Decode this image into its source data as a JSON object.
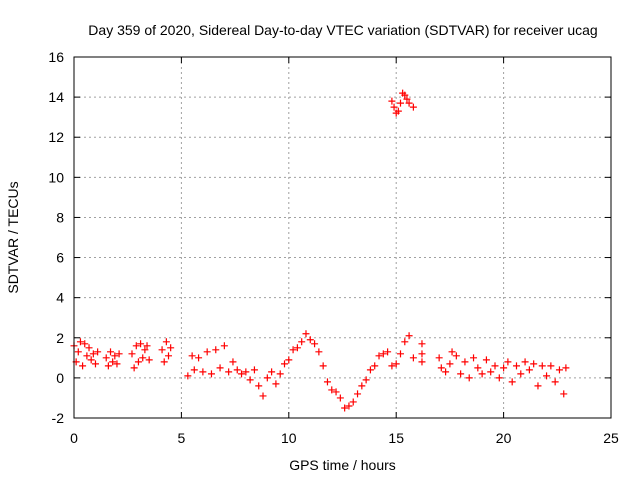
{
  "chart_data": {
    "type": "scatter",
    "title": "Day 359 of 2020, Sidereal Day-to-day VTEC variation (SDTVAR) for receiver ucag",
    "xlabel": "GPS time / hours",
    "ylabel": "SDTVAR / TECUs",
    "xlim": [
      0,
      25
    ],
    "ylim": [
      -2,
      16
    ],
    "xticks": [
      0,
      5,
      10,
      15,
      20,
      25
    ],
    "yticks": [
      -2,
      0,
      2,
      4,
      6,
      8,
      10,
      12,
      14,
      16
    ],
    "grid": true,
    "marker": "plus",
    "color": "#ff0000",
    "series": [
      {
        "name": "SDTVAR",
        "points": [
          [
            0.0,
            1.6
          ],
          [
            0.1,
            0.8
          ],
          [
            0.2,
            1.3
          ],
          [
            0.3,
            1.8
          ],
          [
            0.4,
            0.6
          ],
          [
            0.5,
            1.7
          ],
          [
            0.6,
            1.1
          ],
          [
            0.7,
            1.5
          ],
          [
            0.8,
            0.9
          ],
          [
            0.9,
            1.2
          ],
          [
            1.0,
            0.7
          ],
          [
            1.1,
            1.3
          ],
          [
            1.5,
            1.0
          ],
          [
            1.6,
            0.6
          ],
          [
            1.7,
            1.3
          ],
          [
            1.8,
            0.8
          ],
          [
            1.9,
            1.1
          ],
          [
            2.0,
            0.7
          ],
          [
            2.1,
            1.2
          ],
          [
            2.7,
            1.2
          ],
          [
            2.8,
            0.5
          ],
          [
            2.9,
            1.6
          ],
          [
            3.0,
            0.8
          ],
          [
            3.1,
            1.7
          ],
          [
            3.2,
            1.0
          ],
          [
            3.3,
            1.4
          ],
          [
            3.4,
            1.6
          ],
          [
            3.5,
            0.9
          ],
          [
            4.1,
            1.4
          ],
          [
            4.2,
            0.8
          ],
          [
            4.3,
            1.8
          ],
          [
            4.4,
            1.1
          ],
          [
            4.5,
            1.5
          ],
          [
            5.3,
            0.1
          ],
          [
            5.5,
            1.1
          ],
          [
            5.6,
            0.4
          ],
          [
            5.8,
            1.0
          ],
          [
            6.0,
            0.3
          ],
          [
            6.2,
            1.3
          ],
          [
            6.4,
            0.2
          ],
          [
            6.6,
            1.4
          ],
          [
            6.8,
            0.5
          ],
          [
            7.0,
            1.6
          ],
          [
            7.2,
            0.3
          ],
          [
            7.4,
            0.8
          ],
          [
            7.6,
            0.4
          ],
          [
            7.8,
            0.2
          ],
          [
            8.0,
            0.3
          ],
          [
            8.2,
            -0.1
          ],
          [
            8.4,
            0.4
          ],
          [
            8.6,
            -0.4
          ],
          [
            8.8,
            -0.9
          ],
          [
            9.0,
            0.0
          ],
          [
            9.2,
            0.3
          ],
          [
            9.4,
            -0.3
          ],
          [
            9.6,
            0.2
          ],
          [
            9.8,
            0.7
          ],
          [
            10.0,
            0.9
          ],
          [
            10.2,
            1.4
          ],
          [
            10.4,
            1.5
          ],
          [
            10.6,
            1.8
          ],
          [
            10.8,
            2.2
          ],
          [
            11.0,
            1.9
          ],
          [
            11.2,
            1.7
          ],
          [
            11.4,
            1.3
          ],
          [
            11.6,
            0.6
          ],
          [
            11.8,
            -0.2
          ],
          [
            12.0,
            -0.6
          ],
          [
            12.2,
            -0.7
          ],
          [
            12.4,
            -1.0
          ],
          [
            12.6,
            -1.5
          ],
          [
            12.8,
            -1.4
          ],
          [
            13.0,
            -1.2
          ],
          [
            13.2,
            -0.8
          ],
          [
            13.4,
            -0.4
          ],
          [
            13.6,
            -0.1
          ],
          [
            13.8,
            0.4
          ],
          [
            14.0,
            0.6
          ],
          [
            14.2,
            1.1
          ],
          [
            14.4,
            1.2
          ],
          [
            14.6,
            1.3
          ],
          [
            14.8,
            0.6
          ],
          [
            15.0,
            0.7
          ],
          [
            15.2,
            1.2
          ],
          [
            15.4,
            1.8
          ],
          [
            15.6,
            2.1
          ],
          [
            15.8,
            1.0
          ],
          [
            14.8,
            13.8
          ],
          [
            14.9,
            13.5
          ],
          [
            15.0,
            13.2
          ],
          [
            15.1,
            13.3
          ],
          [
            15.2,
            13.7
          ],
          [
            15.3,
            14.2
          ],
          [
            15.4,
            14.1
          ],
          [
            15.5,
            13.9
          ],
          [
            15.6,
            13.7
          ],
          [
            15.8,
            13.5
          ],
          [
            16.2,
            1.7
          ],
          [
            16.2,
            1.2
          ],
          [
            16.2,
            0.8
          ],
          [
            17.0,
            1.0
          ],
          [
            17.1,
            0.5
          ],
          [
            17.3,
            0.3
          ],
          [
            17.5,
            0.7
          ],
          [
            17.6,
            1.3
          ],
          [
            17.8,
            1.1
          ],
          [
            18.0,
            0.2
          ],
          [
            18.2,
            0.8
          ],
          [
            18.4,
            0.0
          ],
          [
            18.6,
            1.0
          ],
          [
            18.8,
            0.5
          ],
          [
            19.0,
            0.2
          ],
          [
            19.2,
            0.9
          ],
          [
            19.4,
            0.3
          ],
          [
            19.6,
            0.6
          ],
          [
            19.8,
            0.0
          ],
          [
            20.0,
            0.5
          ],
          [
            20.2,
            0.8
          ],
          [
            20.4,
            -0.2
          ],
          [
            20.6,
            0.6
          ],
          [
            20.8,
            0.2
          ],
          [
            21.0,
            0.8
          ],
          [
            21.2,
            0.4
          ],
          [
            21.4,
            0.7
          ],
          [
            21.6,
            -0.4
          ],
          [
            21.8,
            0.6
          ],
          [
            22.0,
            0.1
          ],
          [
            22.2,
            0.6
          ],
          [
            22.4,
            -0.2
          ],
          [
            22.6,
            0.4
          ],
          [
            22.8,
            -0.8
          ],
          [
            22.9,
            0.5
          ]
        ]
      }
    ]
  }
}
